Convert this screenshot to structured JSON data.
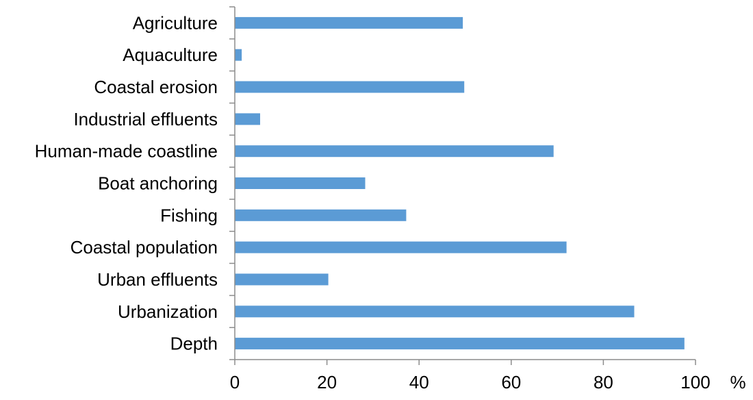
{
  "chart_data": {
    "type": "bar",
    "orientation": "horizontal",
    "categories": [
      "Agriculture",
      "Aquaculture",
      "Coastal erosion",
      "Industrial effluents",
      "Human-made coastline",
      "Boat anchoring",
      "Fishing",
      "Coastal population",
      "Urban effluents",
      "Urbanization",
      "Depth"
    ],
    "values": [
      49.5,
      1.5,
      49.8,
      5.5,
      69.2,
      28.3,
      37.2,
      72.0,
      20.3,
      86.7,
      97.6
    ],
    "xlim": [
      0,
      100
    ],
    "xticks": [
      "0",
      "20",
      "40",
      "60",
      "80",
      "100"
    ],
    "unit_label": "%",
    "bar_color": "#5b9bd5",
    "axis_color": "#8c8c8c",
    "grid": false,
    "legend": false
  }
}
